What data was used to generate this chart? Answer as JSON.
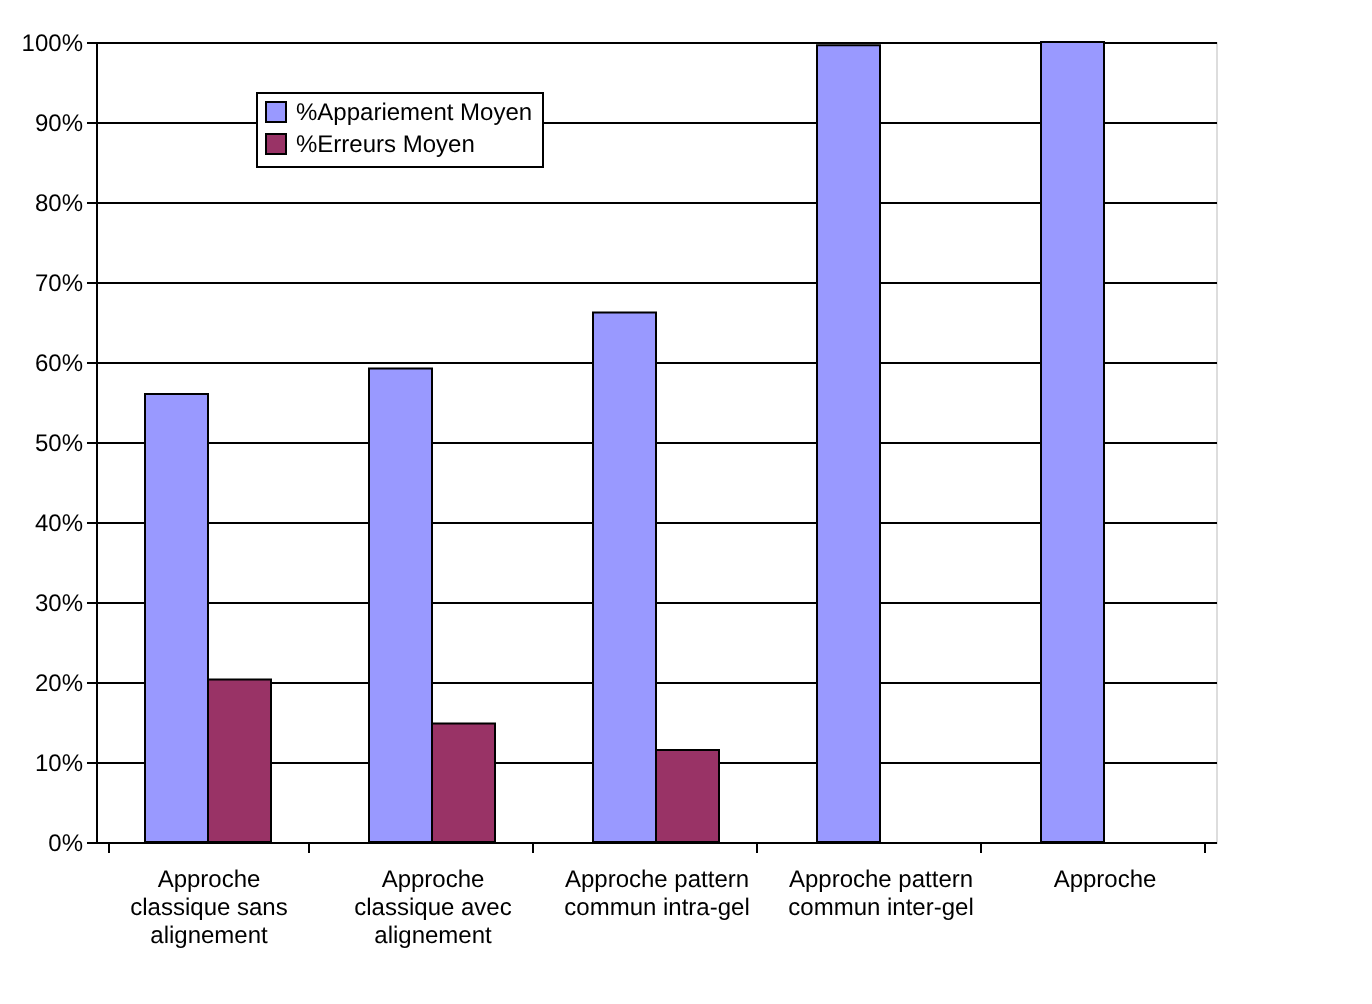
{
  "chart_data": {
    "type": "bar",
    "categories": [
      "Approche classique sans alignement",
      "Approche classique avec alignement",
      "Approche pattern commun intra-gel",
      "Approche pattern commun inter-gel",
      "Approche"
    ],
    "series": [
      {
        "name": "%Appariement Moyen",
        "color": "#9999ff",
        "values": [
          56,
          59.2,
          66.2,
          99.6,
          100
        ]
      },
      {
        "name": "%Erreurs Moyen",
        "color": "#993366",
        "values": [
          20.3,
          14.8,
          11.5,
          null,
          null
        ]
      }
    ],
    "ylim": [
      0,
      100
    ],
    "yticks": [
      {
        "value": 0,
        "label": "0%"
      },
      {
        "value": 10,
        "label": "10%"
      },
      {
        "value": 20,
        "label": "20%"
      },
      {
        "value": 30,
        "label": "30%"
      },
      {
        "value": 40,
        "label": "40%"
      },
      {
        "value": 50,
        "label": "50%"
      },
      {
        "value": 60,
        "label": "60%"
      },
      {
        "value": 70,
        "label": "70%"
      },
      {
        "value": 80,
        "label": "80%"
      },
      {
        "value": 90,
        "label": "90%"
      },
      {
        "value": 100,
        "label": "100%"
      }
    ],
    "grid": "y",
    "legend": "top left"
  }
}
